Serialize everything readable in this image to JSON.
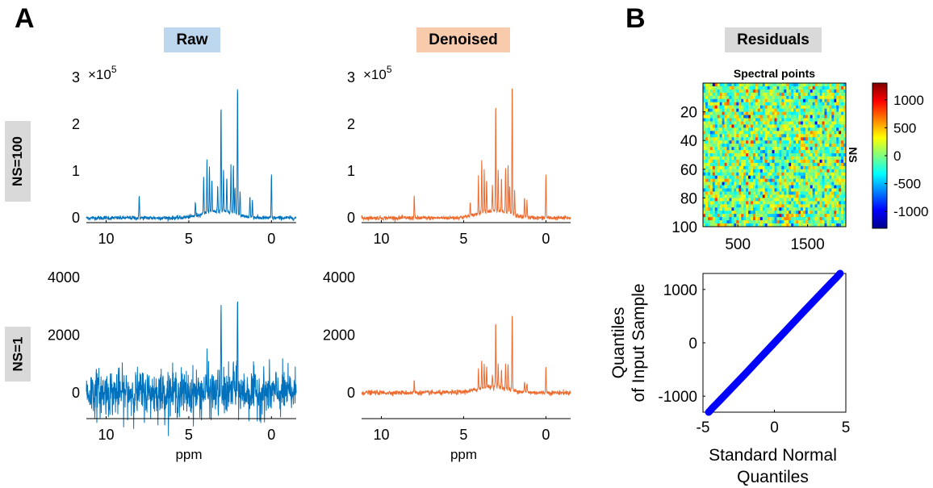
{
  "panels": {
    "a": "A",
    "b": "B"
  },
  "headers": {
    "raw": "Raw",
    "denoised": "Denoised",
    "residuals": "Residuals",
    "raw_bg": "#bdd7ee",
    "denoised_bg": "#f8cbad",
    "residuals_bg": "#d9d9d9"
  },
  "rows": {
    "ns100": "NS=100",
    "ns1": "NS=1"
  },
  "chart_data": [
    {
      "id": "raw-ns100",
      "type": "line",
      "color": "#0072bd",
      "xlabel": "",
      "xreversed": true,
      "xlim": [
        -1.5,
        11.2
      ],
      "ylim": [
        -0.1,
        3
      ],
      "x_ticks": [
        10,
        5,
        0
      ],
      "y_ticks": [
        0,
        1,
        2,
        3
      ],
      "exponent_label": "×10",
      "exponent": "5",
      "noise": 0.022,
      "baseline_hump": true,
      "peaks": [
        [
          8.0,
          0.48
        ],
        [
          4.6,
          0.28
        ],
        [
          4.1,
          0.8
        ],
        [
          3.9,
          1.15
        ],
        [
          3.75,
          0.95
        ],
        [
          3.6,
          0.7
        ],
        [
          3.25,
          0.55
        ],
        [
          3.05,
          2.33
        ],
        [
          2.9,
          0.9
        ],
        [
          2.7,
          0.75
        ],
        [
          2.45,
          1.0
        ],
        [
          2.3,
          1.05
        ],
        [
          2.2,
          0.6
        ],
        [
          2.05,
          2.85
        ],
        [
          1.9,
          0.55
        ],
        [
          1.3,
          0.45
        ],
        [
          1.15,
          0.38
        ],
        [
          0.0,
          0.95
        ]
      ]
    },
    {
      "id": "denoised-ns100",
      "type": "line",
      "color": "#ed6b2f",
      "xlabel": "",
      "xreversed": true,
      "xlim": [
        -1.5,
        11.2
      ],
      "ylim": [
        -0.1,
        3
      ],
      "x_ticks": [
        10,
        5,
        0
      ],
      "y_ticks": [
        0,
        1,
        2,
        3
      ],
      "exponent_label": "×10",
      "exponent": "5",
      "noise": 0.022,
      "baseline_hump": true,
      "peaks": [
        [
          8.0,
          0.48
        ],
        [
          4.6,
          0.28
        ],
        [
          4.1,
          0.8
        ],
        [
          3.9,
          1.15
        ],
        [
          3.75,
          0.95
        ],
        [
          3.6,
          0.7
        ],
        [
          3.25,
          0.55
        ],
        [
          3.05,
          2.33
        ],
        [
          2.9,
          0.9
        ],
        [
          2.7,
          0.75
        ],
        [
          2.45,
          1.0
        ],
        [
          2.3,
          1.05
        ],
        [
          2.2,
          0.6
        ],
        [
          2.05,
          2.85
        ],
        [
          1.9,
          0.55
        ],
        [
          1.3,
          0.45
        ],
        [
          1.15,
          0.38
        ],
        [
          0.0,
          0.95
        ]
      ]
    },
    {
      "id": "raw-ns1",
      "type": "line",
      "color": "#0072bd",
      "xlabel": "ppm",
      "xreversed": true,
      "xlim": [
        -1.5,
        11.2
      ],
      "ylim": [
        -900,
        4000
      ],
      "x_ticks": [
        10,
        5,
        0
      ],
      "y_ticks": [
        0,
        2000,
        4000
      ],
      "noise": 400,
      "baseline_hump": false,
      "peaks": [
        [
          3.9,
          900
        ],
        [
          3.05,
          2600
        ],
        [
          2.05,
          3300
        ],
        [
          2.3,
          1200
        ]
      ]
    },
    {
      "id": "denoised-ns1",
      "type": "line",
      "color": "#ed6b2f",
      "xlabel": "ppm",
      "xreversed": true,
      "xlim": [
        -1.5,
        11.2
      ],
      "ylim": [
        -900,
        4000
      ],
      "x_ticks": [
        10,
        5,
        0
      ],
      "y_ticks": [
        0,
        2000,
        4000
      ],
      "noise": 40,
      "baseline_hump": true,
      "peaks": [
        [
          8.0,
          450
        ],
        [
          4.1,
          700
        ],
        [
          3.9,
          1000
        ],
        [
          3.75,
          900
        ],
        [
          3.6,
          700
        ],
        [
          3.25,
          450
        ],
        [
          3.05,
          2350
        ],
        [
          2.9,
          800
        ],
        [
          2.7,
          650
        ],
        [
          2.45,
          850
        ],
        [
          2.3,
          900
        ],
        [
          2.05,
          2750
        ],
        [
          1.3,
          380
        ],
        [
          1.15,
          320
        ],
        [
          0.0,
          900
        ]
      ]
    },
    {
      "id": "residual-heatmap",
      "type": "heatmap",
      "title": "Spectral points",
      "ylabel": "NS",
      "colormap": "jet",
      "x_ticks": [
        500,
        1500
      ],
      "xlim": [
        0,
        2048
      ],
      "y_ticks": [
        20,
        40,
        60,
        80,
        100
      ],
      "ylim": [
        0,
        100
      ],
      "colorbar_ticks": [
        1000,
        500,
        0,
        -500,
        -1000
      ],
      "clim": [
        -1300,
        1300
      ]
    },
    {
      "id": "qq-plot",
      "type": "scatter",
      "color": "#0000ff",
      "xlabel": "Standard Normal Quantiles",
      "ylabel": "Quantiles of Input Sample",
      "ylabel_lines": [
        "Quantiles",
        "of Input Sample"
      ],
      "xlabel_lines": [
        "Standard Normal",
        "Quantiles"
      ],
      "xlim": [
        -5,
        5
      ],
      "ylim": [
        -1300,
        1300
      ],
      "x_ticks": [
        -5,
        0,
        5
      ],
      "y_ticks": [
        1000,
        0,
        -1000
      ],
      "x": [
        -4.6,
        -4.3,
        -4.0,
        -3.5,
        -3.0,
        -2.0,
        -1.0,
        0,
        1.0,
        2.0,
        3.0,
        3.5,
        4.0,
        4.3,
        4.6
      ],
      "y": [
        -1300,
        -1210,
        -1130,
        -990,
        -850,
        -570,
        -285,
        0,
        285,
        570,
        850,
        990,
        1130,
        1210,
        1300
      ]
    }
  ]
}
